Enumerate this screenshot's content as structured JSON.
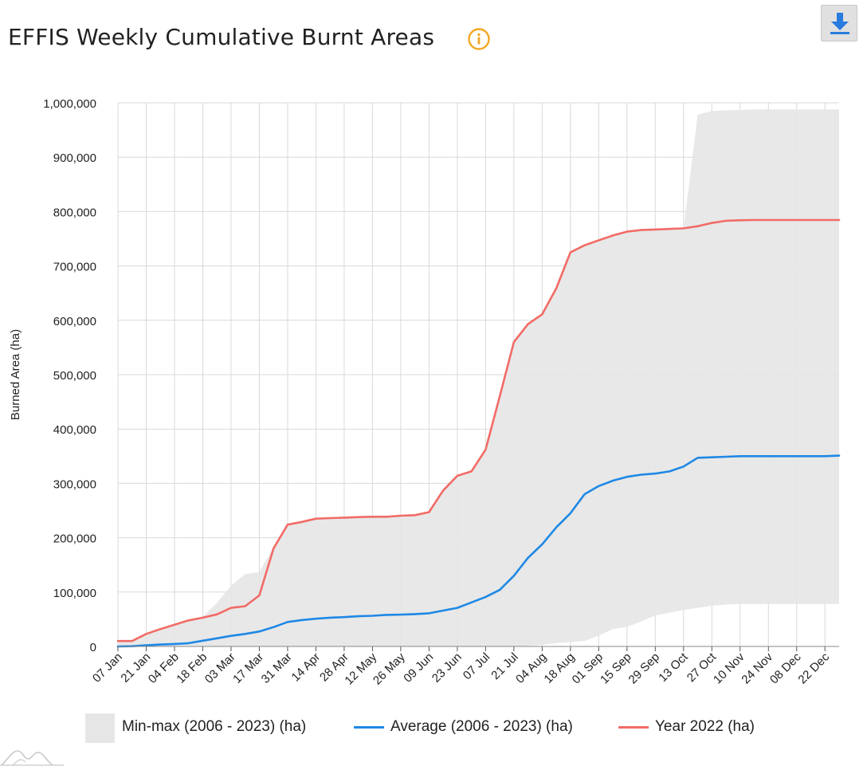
{
  "header": {
    "title": "EFFIS Weekly Cumulative Burnt Areas",
    "info_icon": "info-circle-icon",
    "download_icon": "download-icon"
  },
  "colors": {
    "band": "#e6e6e6",
    "average": "#1e88e5",
    "year": "#f26b66",
    "info": "#f5a623",
    "grid": "#d9d9d9"
  },
  "chart_data": {
    "type": "area",
    "title": "EFFIS Weekly Cumulative Burnt Areas",
    "xlabel": "",
    "ylabel": "Burned Area (ha)",
    "ylim": [
      0,
      1000000
    ],
    "y_ticks": [
      "1,000,000",
      "900,000",
      "800,000",
      "700,000",
      "600,000",
      "500,000",
      "400,000",
      "300,000",
      "200,000",
      "100,000",
      "0"
    ],
    "x_tick_labels": [
      "07 Jan",
      "21 Jan",
      "04 Feb",
      "18 Feb",
      "03 Mar",
      "17 Mar",
      "31 Mar",
      "14 Apr",
      "28 Apr",
      "12 May",
      "26 May",
      "09 Jun",
      "23 Jun",
      "07 Jul",
      "21 Jul",
      "04 Aug",
      "18 Aug",
      "01 Sep",
      "15 Sep",
      "29 Sep",
      "13 Oct",
      "27 Oct",
      "10 Nov",
      "24 Nov",
      "08 Dec",
      "22 Dec"
    ],
    "grid": true,
    "legend_position": "bottom",
    "weeks": 52,
    "series": [
      {
        "name": "Min-max (2006 - 2023) (ha)",
        "kind": "range",
        "min": [
          0,
          0,
          0,
          0,
          0,
          0,
          0,
          0,
          0,
          0,
          0,
          0,
          0,
          0,
          0,
          0,
          0,
          0,
          0,
          0,
          0,
          0,
          0,
          0,
          0,
          0,
          0,
          0,
          0,
          1000,
          3000,
          6000,
          8000,
          10000,
          20000,
          32000,
          36000,
          46000,
          57000,
          62000,
          67000,
          71000,
          75000,
          77000,
          78000,
          78000,
          78000,
          78000,
          78000,
          78000,
          78000,
          78000
        ],
        "max": [
          10000,
          12000,
          24000,
          33000,
          41000,
          49000,
          55000,
          80000,
          112000,
          133000,
          137000,
          183000,
          225000,
          230000,
          236000,
          237000,
          238000,
          239000,
          239000,
          239000,
          241000,
          242000,
          248000,
          288000,
          315000,
          323000,
          362000,
          460000,
          560000,
          593000,
          612000,
          660000,
          726000,
          739000,
          748000,
          756000,
          764000,
          767000,
          768000,
          769000,
          769000,
          978000,
          985000,
          986000,
          987000,
          988000,
          988000,
          988000,
          988000,
          988000,
          988000,
          988000
        ]
      },
      {
        "name": "Average (2006 - 2023) (ha)",
        "kind": "line",
        "values": [
          0,
          500,
          2000,
          3500,
          4500,
          6000,
          10500,
          15000,
          19500,
          23000,
          27500,
          35500,
          45000,
          48500,
          51000,
          53000,
          54000,
          55500,
          56500,
          58000,
          58500,
          59500,
          61000,
          66000,
          71000,
          81000,
          91000,
          104000,
          130000,
          163000,
          188000,
          219000,
          245000,
          280000,
          295000,
          305000,
          312000,
          316000,
          318000,
          322000,
          331000,
          347000,
          348000,
          349000,
          350000,
          350000,
          350000,
          350000,
          350000,
          350000,
          350000,
          351000
        ]
      },
      {
        "name": "Year 2022 (ha)",
        "kind": "line",
        "values": [
          10000,
          10000,
          23000,
          32000,
          40000,
          48000,
          53000,
          59000,
          71000,
          74000,
          94000,
          180000,
          224000,
          229000,
          235000,
          236000,
          237000,
          238000,
          238500,
          238500,
          240500,
          241500,
          247000,
          287000,
          314000,
          322000,
          362000,
          460000,
          560000,
          593000,
          611000,
          659000,
          725000,
          738000,
          747000,
          756000,
          763000,
          766000,
          767000,
          768000,
          769000,
          773000,
          779000,
          783000,
          784000,
          784500,
          784500,
          784500,
          784500,
          784500,
          784500,
          784500
        ]
      }
    ]
  }
}
